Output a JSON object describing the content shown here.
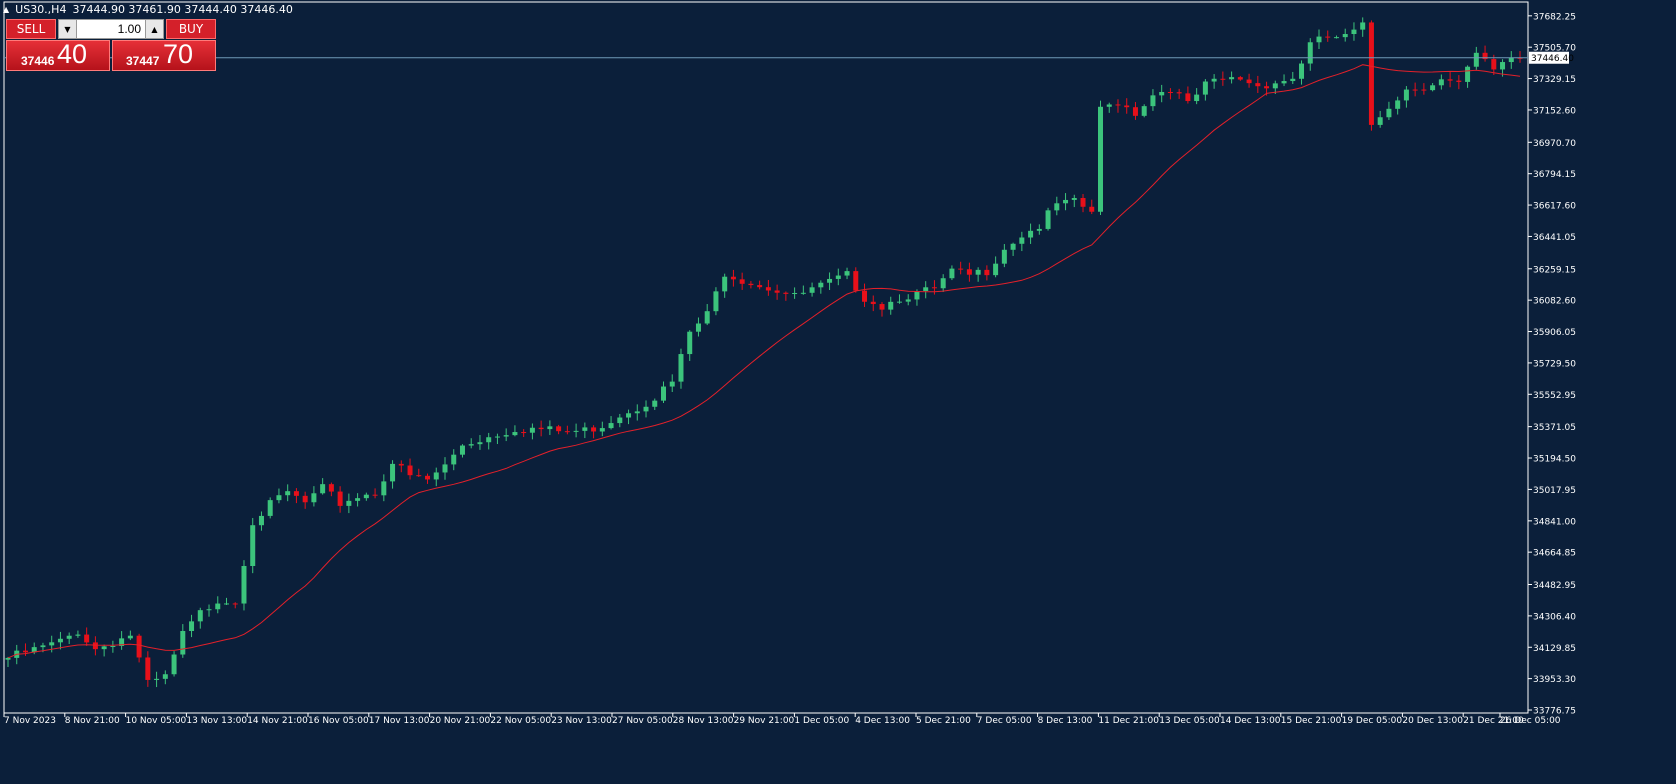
{
  "header": {
    "symbol": "US30.,H4",
    "ohlc": "37444.90 37461.90 37444.40 37446.40"
  },
  "trade_panel": {
    "sell_label": "SELL",
    "buy_label": "BUY",
    "lot_value": "1.00",
    "sell_price_small": "37446",
    "sell_price_big": "40",
    "buy_price_small": "37447",
    "buy_price_big": "70"
  },
  "colors": {
    "background": "#0b1f3a",
    "bull": "#3cc47c",
    "bear": "#e8101a",
    "ma_line": "#e3202a",
    "bid_line": "#6f9ab8",
    "axis_text": "#ffffff"
  },
  "chart_data": {
    "type": "candlestick",
    "current_price": "37446.40",
    "y_ticks": [
      "37682.25",
      "37505.70",
      "37329.15",
      "37152.60",
      "36970.70",
      "36794.15",
      "36617.60",
      "36441.05",
      "36259.15",
      "36082.60",
      "35906.05",
      "35729.50",
      "35552.95",
      "35371.05",
      "35194.50",
      "35017.95",
      "34841.00",
      "34664.85",
      "34482.95",
      "34306.40",
      "34129.85",
      "33953.30",
      "33776.75"
    ],
    "x_ticks": [
      "7 Nov 2023",
      "8 Nov 21:00",
      "10 Nov 05:00",
      "13 Nov 13:00",
      "14 Nov 21:00",
      "16 Nov 05:00",
      "17 Nov 13:00",
      "20 Nov 21:00",
      "22 Nov 05:00",
      "23 Nov 13:00",
      "27 Nov 05:00",
      "28 Nov 13:00",
      "29 Nov 21:00",
      "1 Dec 05:00",
      "4 Dec 13:00",
      "5 Dec 21:00",
      "7 Dec 05:00",
      "8 Dec 13:00",
      "11 Dec 21:00",
      "13 Dec 05:00",
      "14 Dec 13:00",
      "15 Dec 21:00",
      "19 Dec 05:00",
      "20 Dec 13:00",
      "21 Dec 21:00",
      "26 Dec 05:00"
    ],
    "ylim": [
      33760,
      37760
    ],
    "anchors": [
      [
        0,
        34070
      ],
      [
        6,
        34160
      ],
      [
        8,
        34220
      ],
      [
        10,
        34120
      ],
      [
        12,
        34160
      ],
      [
        14,
        34200
      ],
      [
        16,
        33920
      ],
      [
        18,
        33960
      ],
      [
        20,
        34200
      ],
      [
        22,
        34320
      ],
      [
        24,
        34400
      ],
      [
        26,
        34390
      ],
      [
        28,
        34840
      ],
      [
        30,
        34930
      ],
      [
        32,
        35000
      ],
      [
        34,
        34940
      ],
      [
        36,
        35020
      ],
      [
        38,
        34940
      ],
      [
        40,
        34980
      ],
      [
        42,
        35000
      ],
      [
        44,
        35170
      ],
      [
        46,
        35090
      ],
      [
        48,
        35070
      ],
      [
        50,
        35150
      ],
      [
        52,
        35270
      ],
      [
        54,
        35300
      ],
      [
        56,
        35330
      ],
      [
        58,
        35360
      ],
      [
        60,
        35360
      ],
      [
        62,
        35350
      ],
      [
        64,
        35340
      ],
      [
        66,
        35350
      ],
      [
        68,
        35380
      ],
      [
        70,
        35440
      ],
      [
        72,
        35480
      ],
      [
        74,
        35540
      ],
      [
        76,
        35620
      ],
      [
        78,
        35900
      ],
      [
        80,
        36000
      ],
      [
        82,
        36240
      ],
      [
        84,
        36200
      ],
      [
        86,
        36170
      ],
      [
        88,
        36140
      ],
      [
        90,
        36100
      ],
      [
        92,
        36140
      ],
      [
        94,
        36180
      ],
      [
        96,
        36220
      ],
      [
        98,
        36100
      ],
      [
        100,
        36050
      ],
      [
        102,
        36100
      ],
      [
        104,
        36120
      ],
      [
        106,
        36140
      ],
      [
        108,
        36240
      ],
      [
        110,
        36220
      ],
      [
        112,
        36250
      ],
      [
        114,
        36380
      ],
      [
        116,
        36450
      ],
      [
        118,
        36500
      ],
      [
        120,
        36620
      ],
      [
        122,
        36630
      ],
      [
        124,
        36580
      ],
      [
        125,
        37150
      ],
      [
        127,
        37200
      ],
      [
        129,
        37140
      ],
      [
        131,
        37240
      ],
      [
        133,
        37280
      ],
      [
        135,
        37180
      ],
      [
        137,
        37290
      ],
      [
        139,
        37320
      ],
      [
        141,
        37330
      ],
      [
        143,
        37290
      ],
      [
        145,
        37310
      ],
      [
        147,
        37330
      ],
      [
        149,
        37520
      ],
      [
        151,
        37560
      ],
      [
        153,
        37560
      ],
      [
        155,
        37620
      ],
      [
        156,
        37070
      ],
      [
        158,
        37180
      ],
      [
        160,
        37270
      ],
      [
        162,
        37290
      ],
      [
        164,
        37320
      ],
      [
        166,
        37290
      ],
      [
        168,
        37460
      ],
      [
        170,
        37380
      ],
      [
        171,
        37430
      ],
      [
        172,
        37450
      ]
    ]
  }
}
